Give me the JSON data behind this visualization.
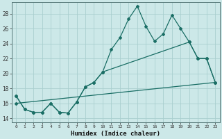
{
  "background_color": "#cce8e8",
  "grid_color": "#aacfcf",
  "line_color": "#1a6e65",
  "xlim": [
    -0.5,
    23.5
  ],
  "ylim": [
    13.5,
    29.5
  ],
  "xlabel": "Humidex (Indice chaleur)",
  "ytick_values": [
    14,
    16,
    18,
    20,
    22,
    24,
    26,
    28
  ],
  "xtick_labels": [
    "0",
    "1",
    "2",
    "3",
    "4",
    "5",
    "6",
    "7",
    "8",
    "9",
    "10",
    "11",
    "12",
    "13",
    "14",
    "15",
    "16",
    "17",
    "18",
    "19",
    "20",
    "21",
    "22",
    "23"
  ],
  "line1_x": [
    0,
    1,
    2,
    3,
    4,
    5,
    6,
    7,
    8,
    9,
    10,
    11,
    12,
    13,
    14,
    15,
    16,
    17,
    18,
    19,
    20,
    21,
    22,
    23
  ],
  "line1_y": [
    17.0,
    15.2,
    14.8,
    14.8,
    16.0,
    14.8,
    14.7,
    16.2,
    18.2,
    18.8,
    20.2,
    23.2,
    24.8,
    27.3,
    29.0,
    26.3,
    24.3,
    25.3,
    27.8,
    26.0,
    24.2,
    22.0,
    22.0,
    18.8
  ],
  "line2_x": [
    0,
    1,
    2,
    3,
    4,
    5,
    6,
    7,
    8,
    9,
    10,
    20,
    21,
    22,
    23
  ],
  "line2_y": [
    17.0,
    15.2,
    14.8,
    14.8,
    16.0,
    14.8,
    14.7,
    16.2,
    18.2,
    18.8,
    20.2,
    24.2,
    22.0,
    22.0,
    18.8
  ],
  "line3_x": [
    0,
    23
  ],
  "line3_y": [
    16.0,
    18.8
  ],
  "markersize": 2.0,
  "linewidth": 0.9
}
